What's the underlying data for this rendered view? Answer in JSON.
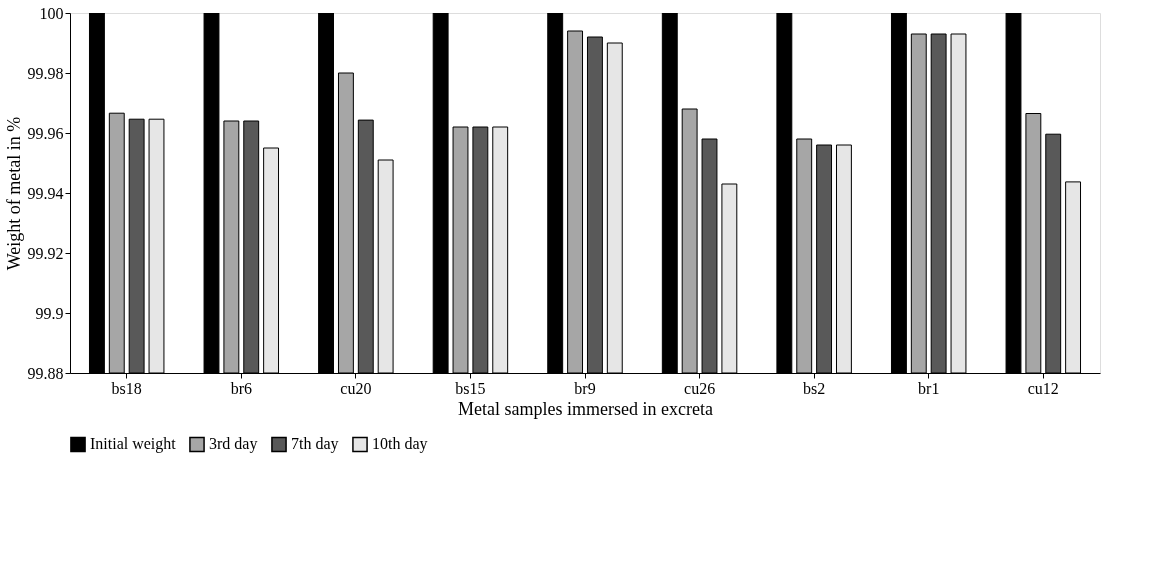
{
  "chart_data": {
    "type": "bar",
    "xlabel": "Metal samples immersed in excreta",
    "ylabel": "Weight of metal in %",
    "categories": [
      "bs18",
      "br6",
      "cu20",
      "bs15",
      "br9",
      "cu26",
      "bs2",
      "br1",
      "cu12"
    ],
    "series": [
      {
        "name": "Initial weight",
        "color": "#000000",
        "values": [
          100,
          100,
          100,
          100,
          100,
          100,
          100,
          100,
          100
        ]
      },
      {
        "name": "3rd day",
        "color": "#a6a6a6",
        "values": [
          99.9666,
          99.964,
          99.98,
          99.962,
          99.994,
          99.968,
          99.958,
          99.993,
          99.9665
        ]
      },
      {
        "name": "7th day",
        "color": "#595959",
        "values": [
          99.9646,
          99.964,
          99.9643,
          99.962,
          99.992,
          99.958,
          99.956,
          99.993,
          99.9596
        ]
      },
      {
        "name": "10th day",
        "color": "#e6e6e6",
        "values": [
          99.9646,
          99.955,
          99.951,
          99.962,
          99.99,
          99.943,
          99.956,
          99.993,
          99.9437
        ]
      }
    ],
    "ylim": [
      99.88,
      100
    ],
    "yticks": [
      99.88,
      99.9,
      99.92,
      99.94,
      99.96,
      99.98,
      100
    ],
    "grid": false,
    "legend": "bottom"
  }
}
